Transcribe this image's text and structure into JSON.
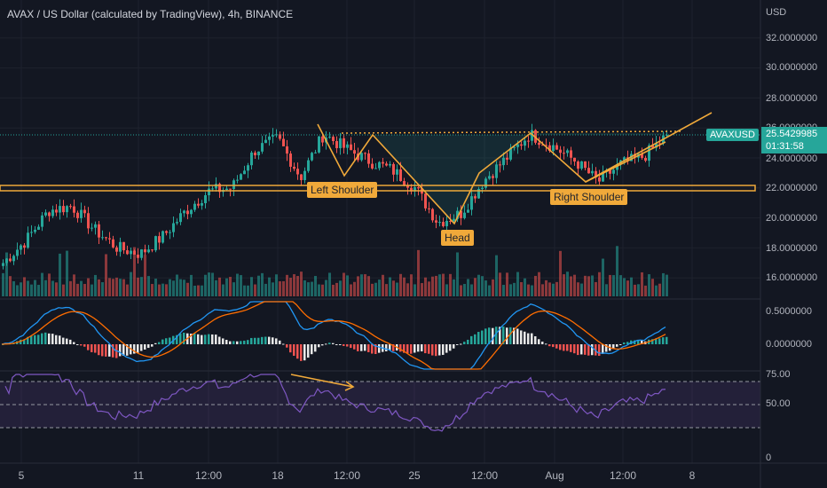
{
  "header": {
    "title": "AVAX / US Dollar (calculated by TradingView), 4h, BINANCE"
  },
  "price_scale": {
    "currency": "USD",
    "ticks": [
      "32.0000000",
      "30.0000000",
      "28.0000000",
      "26.0000000",
      "24.0000000",
      "22.0000000",
      "20.0000000",
      "18.0000000",
      "16.0000000"
    ],
    "macd_ticks": [
      "0.5000000",
      "0.0000000"
    ],
    "rsi_ticks": [
      "75.00",
      "50.00",
      "0"
    ]
  },
  "last_price": {
    "symbol": "AVAXUSD",
    "price": "25.5429985",
    "countdown": "01:31:58"
  },
  "time_axis": {
    "ticks": [
      "5",
      "11",
      "12:00",
      "18",
      "12:00",
      "25",
      "12:00",
      "Aug",
      "12:00",
      "8"
    ]
  },
  "annotations": {
    "left_shoulder": "Left Shoulder",
    "head": "Head",
    "right_shoulder": "Right Shoulder"
  },
  "colors": {
    "background": "#131722",
    "up": "#26a69a",
    "down": "#ef5350",
    "annotation": "#f0a93a",
    "macd_line": "#2196f3",
    "signal_line": "#ff6d00",
    "rsi_line": "#7e57c2"
  },
  "chart_data": {
    "type": "candlestick",
    "instrument": "AVAX / US Dollar",
    "interval": "4h",
    "price_range": [
      15,
      33
    ],
    "current_price": 25.5429985,
    "neckline_price": 25.6,
    "support_zone": [
      21.9,
      22.1
    ],
    "pattern": [
      "Left Shoulder",
      "Head",
      "Right Shoulder"
    ],
    "price_path": [
      17,
      18.5,
      20.5,
      20.8,
      19.2,
      18.0,
      17.6,
      18.8,
      20.5,
      21.8,
      22.0,
      24.5,
      25.3,
      22.7,
      25.6,
      24.6,
      23.8,
      23.2,
      22.0,
      19.7,
      20.3,
      22.5,
      24.0,
      25.6,
      24.8,
      23.8,
      22.4,
      23.6,
      24.1,
      25.5
    ],
    "indicators": [
      "Volume",
      "MACD",
      "RSI"
    ]
  }
}
